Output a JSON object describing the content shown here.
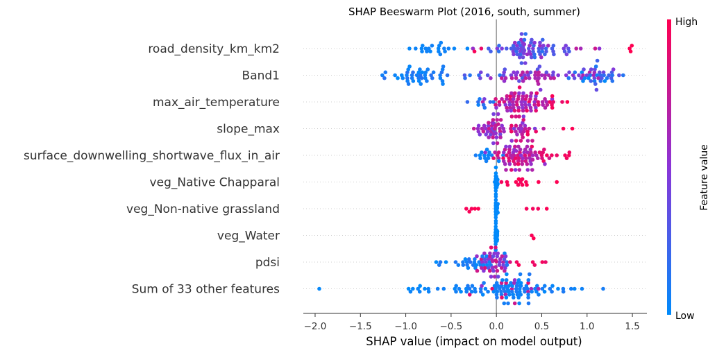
{
  "chart_data": {
    "type": "scatter",
    "subtype": "beeswarm",
    "title": "SHAP Beeswarm Plot (2016, south, summer)",
    "xlabel": "SHAP value (impact on model output)",
    "xlim": [
      -2.13,
      1.66
    ],
    "xticks": [
      -2.0,
      -1.5,
      -1.0,
      -0.5,
      0.0,
      0.5,
      1.0,
      1.5
    ],
    "xtick_labels": [
      "−2.0",
      "−1.5",
      "−1.0",
      "−0.5",
      "0.0",
      "0.5",
      "1.0",
      "1.5"
    ],
    "zero_line": 0.0,
    "grid": "dotted row lines",
    "colorbar": {
      "label": "Feature value",
      "high_label": "High",
      "low_label": "Low",
      "low_color": "#008bfb",
      "high_color": "#ff0051"
    },
    "features": [
      {
        "name": "road_density_km_km2",
        "clusters": [
          {
            "c": -0.68,
            "s": 0.14,
            "n": 20,
            "cv": [
              0.02,
              0.06
            ]
          },
          {
            "c": 0.35,
            "s": 0.18,
            "n": 70,
            "cv": [
              0.15,
              0.6
            ]
          },
          {
            "c": 0.0,
            "s": 0.05,
            "n": 5,
            "cv": [
              0.1,
              0.3
            ]
          },
          {
            "c": 0.9,
            "s": 0.12,
            "n": 6,
            "cv": [
              0.4,
              0.9
            ]
          },
          {
            "c": 1.48,
            "s": 0.02,
            "n": 3,
            "cv": [
              0.97,
              1.0
            ]
          },
          {
            "c": -0.22,
            "s": 0.05,
            "n": 2,
            "cv": [
              0.9,
              1.0
            ]
          }
        ]
      },
      {
        "name": "Band1",
        "clusters": [
          {
            "c": -0.85,
            "s": 0.2,
            "n": 42,
            "cv": [
              0.0,
              0.15
            ]
          },
          {
            "c": -0.1,
            "s": 0.22,
            "n": 14,
            "cv": [
              0.1,
              0.6
            ]
          },
          {
            "c": 0.35,
            "s": 0.2,
            "n": 38,
            "cv": [
              0.3,
              0.75
            ]
          },
          {
            "c": 1.05,
            "s": 0.18,
            "n": 48,
            "cv": [
              0.0,
              0.7
            ]
          }
        ]
      },
      {
        "name": "max_air_temperature",
        "clusters": [
          {
            "c": -0.15,
            "s": 0.1,
            "n": 8,
            "cv": [
              0.05,
              0.2
            ]
          },
          {
            "c": 0.3,
            "s": 0.18,
            "n": 75,
            "cv": [
              0.45,
              0.95
            ]
          },
          {
            "c": 0.65,
            "s": 0.1,
            "n": 8,
            "cv": [
              0.85,
              1.0
            ]
          }
        ]
      },
      {
        "name": "slope_max",
        "clusters": [
          {
            "c": -0.06,
            "s": 0.08,
            "n": 45,
            "cv": [
              0.4,
              0.8
            ]
          },
          {
            "c": 0.3,
            "s": 0.15,
            "n": 24,
            "cv": [
              0.4,
              1.0
            ]
          },
          {
            "c": 0.72,
            "s": 0.05,
            "n": 2,
            "cv": [
              0.95,
              1.0
            ]
          }
        ]
      },
      {
        "name": "surface_downwelling_shortwave_flux_in_air",
        "clusters": [
          {
            "c": -0.1,
            "s": 0.12,
            "n": 14,
            "cv": [
              0.0,
              0.1
            ]
          },
          {
            "c": 0.25,
            "s": 0.15,
            "n": 80,
            "cv": [
              0.5,
              0.95
            ]
          },
          {
            "c": 0.62,
            "s": 0.08,
            "n": 6,
            "cv": [
              0.9,
              1.0
            ]
          }
        ]
      },
      {
        "name": "veg_Native Chapparal",
        "clusters": [
          {
            "c": 0.0,
            "s": 0.006,
            "n": 55,
            "cv": [
              0.0,
              0.02
            ]
          },
          {
            "c": 0.2,
            "s": 0.12,
            "n": 12,
            "cv": [
              0.95,
              1.0
            ]
          },
          {
            "c": 0.65,
            "s": 0.01,
            "n": 1,
            "cv": [
              0.97,
              1.0
            ]
          }
        ]
      },
      {
        "name": "veg_Non-native grassland",
        "clusters": [
          {
            "c": 0.0,
            "s": 0.006,
            "n": 55,
            "cv": [
              0.0,
              0.02
            ]
          },
          {
            "c": -0.26,
            "s": 0.08,
            "n": 5,
            "cv": [
              0.95,
              1.0
            ]
          },
          {
            "c": 0.48,
            "s": 0.1,
            "n": 4,
            "cv": [
              0.95,
              1.0
            ]
          }
        ]
      },
      {
        "name": "veg_Water",
        "clusters": [
          {
            "c": 0.0,
            "s": 0.006,
            "n": 55,
            "cv": [
              0.0,
              0.02
            ]
          },
          {
            "c": 0.43,
            "s": 0.1,
            "n": 2,
            "cv": [
              0.97,
              1.0
            ]
          }
        ]
      },
      {
        "name": "pdsi",
        "clusters": [
          {
            "c": -0.3,
            "s": 0.2,
            "n": 30,
            "cv": [
              0.0,
              0.15
            ]
          },
          {
            "c": 0.0,
            "s": 0.1,
            "n": 45,
            "cv": [
              0.3,
              0.9
            ]
          },
          {
            "c": 0.4,
            "s": 0.1,
            "n": 6,
            "cv": [
              0.9,
              1.0
            ]
          }
        ]
      },
      {
        "name": "Sum of 33 other features",
        "clusters": [
          {
            "c": 0.15,
            "s": 0.35,
            "n": 95,
            "cv": [
              0.0,
              0.12
            ]
          },
          {
            "c": -0.9,
            "s": 0.2,
            "n": 8,
            "cv": [
              0.0,
              0.05
            ]
          },
          {
            "c": 0.2,
            "s": 0.3,
            "n": 15,
            "cv": [
              0.5,
              0.95
            ]
          },
          {
            "c": -1.96,
            "s": 0.01,
            "n": 1,
            "cv": [
              0.0,
              0.02
            ]
          }
        ]
      }
    ]
  }
}
